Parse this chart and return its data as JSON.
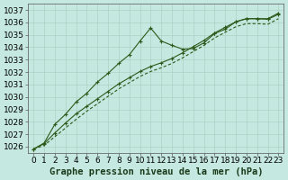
{
  "title": "Graphe pression niveau de la mer (hPa)",
  "x_values": [
    0,
    1,
    2,
    3,
    4,
    5,
    6,
    7,
    8,
    9,
    10,
    11,
    12,
    13,
    14,
    15,
    16,
    17,
    18,
    19,
    20,
    21,
    22,
    23
  ],
  "y_upper": [
    1025.8,
    1026.3,
    1027.8,
    1028.6,
    1029.6,
    1030.3,
    1031.2,
    1031.9,
    1032.7,
    1033.4,
    1034.5,
    1035.55,
    1034.5,
    1034.15,
    1033.85,
    1033.9,
    1034.35,
    1035.1,
    1035.45,
    1036.05,
    1036.3,
    1036.3,
    1036.3,
    1036.75
  ],
  "y_mid": [
    1025.8,
    1026.25,
    1027.1,
    1027.9,
    1028.65,
    1029.25,
    1029.85,
    1030.45,
    1031.05,
    1031.55,
    1032.05,
    1032.45,
    1032.75,
    1033.1,
    1033.55,
    1034.05,
    1034.55,
    1035.15,
    1035.6,
    1036.05,
    1036.3,
    1036.3,
    1036.25,
    1036.65
  ],
  "y_lower": [
    1025.8,
    1026.1,
    1026.8,
    1027.5,
    1028.2,
    1028.85,
    1029.45,
    1030.05,
    1030.65,
    1031.15,
    1031.65,
    1032.05,
    1032.35,
    1032.7,
    1033.15,
    1033.65,
    1034.15,
    1034.75,
    1035.2,
    1035.65,
    1035.9,
    1035.9,
    1035.85,
    1036.3
  ],
  "line_color": "#2d5a1b",
  "bg_color": "#c5e8e0",
  "grid_color": "#a8ccbb",
  "ylim": [
    1025.5,
    1037.5
  ],
  "xlim": [
    -0.5,
    23.5
  ],
  "yticks": [
    1026,
    1027,
    1028,
    1029,
    1030,
    1031,
    1032,
    1033,
    1034,
    1035,
    1036,
    1037
  ],
  "xticks": [
    0,
    1,
    2,
    3,
    4,
    5,
    6,
    7,
    8,
    9,
    10,
    11,
    12,
    13,
    14,
    15,
    16,
    17,
    18,
    19,
    20,
    21,
    22,
    23
  ],
  "tick_fontsize": 6.5,
  "title_fontsize": 7.5,
  "marker": "+",
  "markersize": 3.5,
  "linewidth": 0.8
}
